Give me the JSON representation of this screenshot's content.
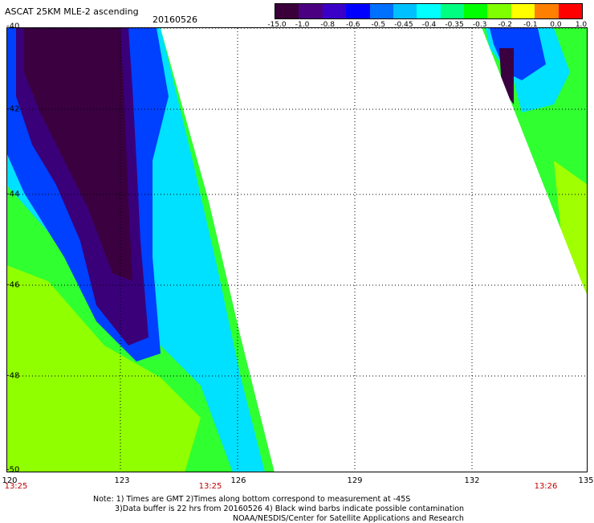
{
  "header": {
    "title": "ASCAT 25KM MLE-2 ascending",
    "date": "20160526"
  },
  "colorbar": {
    "ticks": [
      "-15.0",
      "-1.0",
      "-0.8",
      "-0.6",
      "-0.5",
      "-0.45",
      "-0.4",
      "-0.35",
      "-0.3",
      "-0.2",
      "-0.1",
      "0.0",
      "1.0"
    ],
    "colors": [
      "#3a003a",
      "#4b0082",
      "#3b00c8",
      "#0000ff",
      "#0070ff",
      "#00c0ff",
      "#00ffff",
      "#00ff80",
      "#00ff00",
      "#80ff00",
      "#ffff00",
      "#ff8000",
      "#ff0000"
    ]
  },
  "axes": {
    "lat_labels": [
      "-40",
      "-42",
      "-44",
      "-46",
      "-48",
      "-50"
    ],
    "lon_labels": [
      "120",
      "123",
      "126",
      "129",
      "132",
      "135"
    ]
  },
  "times": [
    "13:25",
    "13:25",
    "13:26"
  ],
  "notes": [
    "Note: 1) Times are GMT 2)Times along bottom correspond to measurement at -45S",
    "3)Data buffer is 22 hrs from 20160526 4) Black wind barbs indicate possible contamination",
    "NOAA/NESDIS/Center for Satellite Applications and Research"
  ]
}
